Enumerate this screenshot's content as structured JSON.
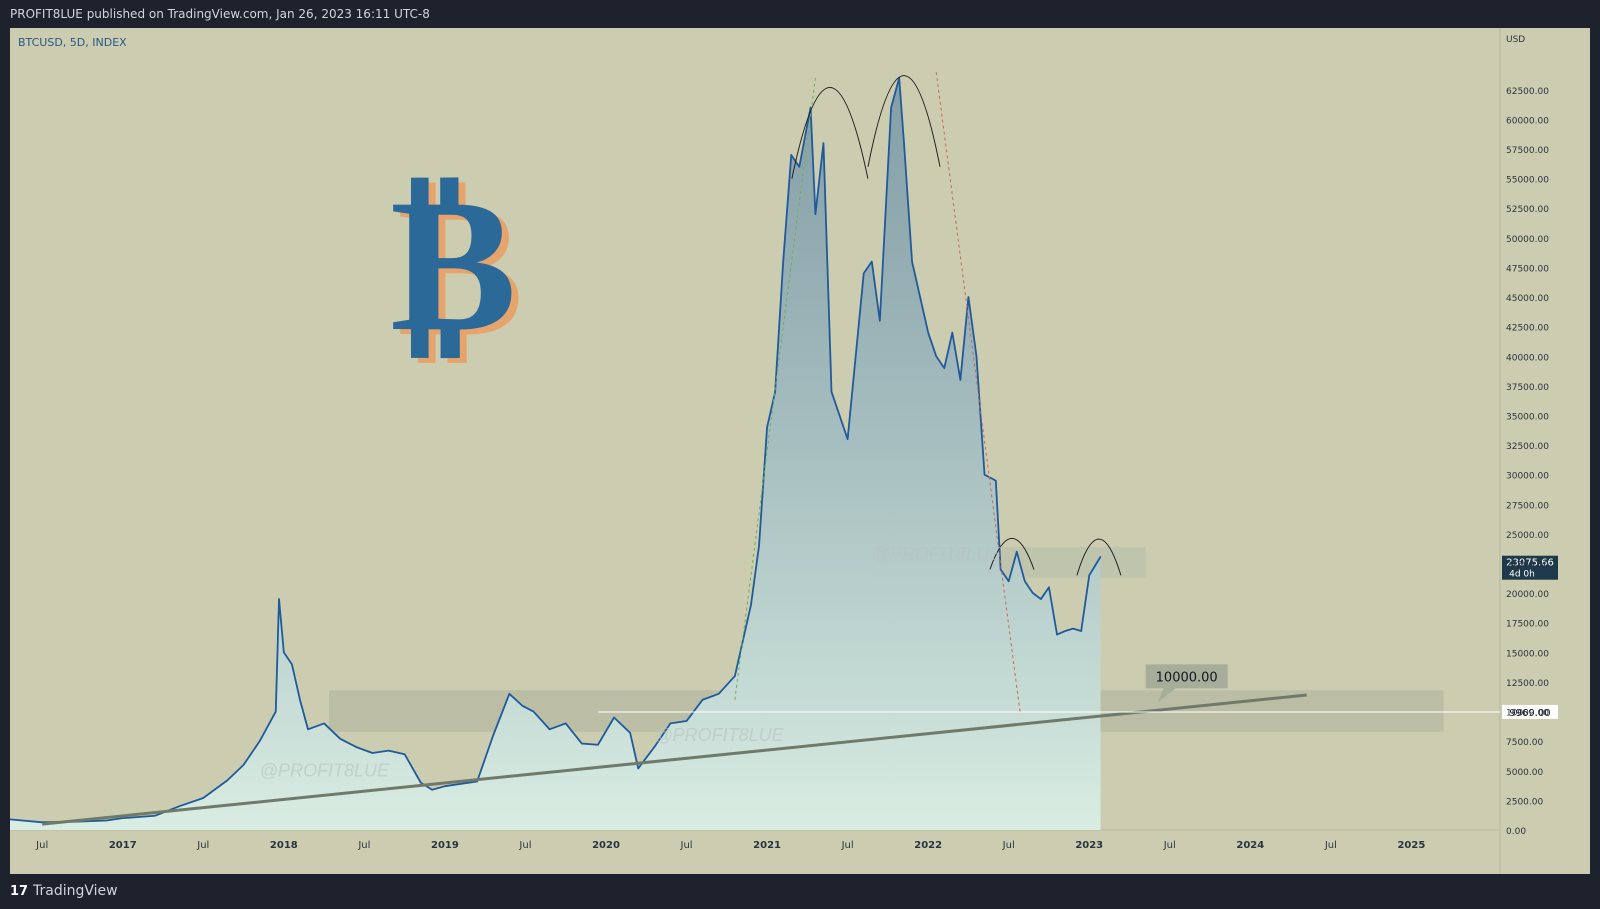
{
  "header": {
    "published_text": "PROFIT8LUE published on TradingView.com, Jan 26, 2023 16:11 UTC-8"
  },
  "symbol": {
    "label": "BTCUSD, 5D, INDEX"
  },
  "logo": {
    "glyph": "₿",
    "color": "#2b6a98",
    "shadow": "#e6a46c"
  },
  "watermarks": [
    "@PROFIT8LUE",
    "@PROFIT8LUE",
    "@PROFIT8LUE"
  ],
  "footer": {
    "logo_glyph": "17",
    "brand": "TradingView"
  },
  "colors": {
    "background": "#cccdb0",
    "line": "#1f5a9c",
    "trendline": "#707a6a",
    "accent": "#1e3a4a"
  },
  "chart_data": {
    "type": "line",
    "title": "",
    "xlabel": "",
    "ylabel": "USD",
    "ylim": [
      0,
      65000
    ],
    "x_tick_labels": [
      "Jul",
      "2017",
      "Jul",
      "2018",
      "Jul",
      "2019",
      "Jul",
      "2020",
      "Jul",
      "2021",
      "Jul",
      "2022",
      "Jul",
      "2023",
      "Jul",
      "2024",
      "Jul",
      "2025"
    ],
    "x_tick_bold": [
      false,
      true,
      false,
      true,
      false,
      true,
      false,
      true,
      false,
      true,
      false,
      true,
      false,
      true,
      false,
      true,
      false,
      true
    ],
    "y_tick_labels": [
      "62500.00",
      "60000.00",
      "57500.00",
      "55000.00",
      "52500.00",
      "50000.00",
      "47500.00",
      "45000.00",
      "42500.00",
      "40000.00",
      "37500.00",
      "35000.00",
      "32500.00",
      "30000.00",
      "27500.00",
      "25000.00",
      "22500.00",
      "20000.00",
      "17500.00",
      "15000.00",
      "12500.00",
      "10000.00",
      "7500.00",
      "5000.00",
      "2500.00",
      "0.00"
    ],
    "y_ticks": [
      62500,
      60000,
      57500,
      55000,
      52500,
      50000,
      47500,
      45000,
      42500,
      40000,
      37500,
      35000,
      32500,
      30000,
      27500,
      25000,
      22500,
      20000,
      17500,
      15000,
      12500,
      10000,
      7500,
      5000,
      2500,
      0
    ],
    "series": [
      {
        "x": [
          2016.3,
          2016.5,
          2016.7,
          2016.9,
          2017.0,
          2017.2,
          2017.35,
          2017.5,
          2017.65,
          2017.75,
          2017.85,
          2017.95,
          2017.97,
          2018.0,
          2018.05,
          2018.1,
          2018.15,
          2018.25,
          2018.35,
          2018.45,
          2018.55,
          2018.65,
          2018.75,
          2018.85,
          2018.92,
          2019.0,
          2019.1,
          2019.2,
          2019.3,
          2019.4,
          2019.48,
          2019.55,
          2019.65,
          2019.75,
          2019.85,
          2019.95,
          2020.05,
          2020.15,
          2020.2,
          2020.3,
          2020.4,
          2020.5,
          2020.6,
          2020.7,
          2020.8,
          2020.9,
          2020.95,
          2021.0,
          2021.05,
          2021.1,
          2021.15,
          2021.2,
          2021.27,
          2021.3,
          2021.35,
          2021.4,
          2021.45,
          2021.5,
          2021.55,
          2021.6,
          2021.65,
          2021.7,
          2021.77,
          2021.82,
          2021.85,
          2021.9,
          2021.95,
          2022.0,
          2022.05,
          2022.1,
          2022.15,
          2022.2,
          2022.25,
          2022.3,
          2022.35,
          2022.42,
          2022.45,
          2022.5,
          2022.55,
          2022.6,
          2022.65,
          2022.7,
          2022.75,
          2022.8,
          2022.85,
          2022.9,
          2022.95,
          2023.0,
          2023.07
        ],
        "values": [
          900,
          650,
          700,
          800,
          1000,
          1200,
          2000,
          2700,
          4200,
          5500,
          7500,
          10000,
          19500,
          15000,
          14000,
          11000,
          8500,
          9000,
          7700,
          7000,
          6500,
          6700,
          6400,
          4000,
          3400,
          3700,
          3900,
          4100,
          8000,
          11500,
          10500,
          10000,
          8500,
          9000,
          7300,
          7200,
          9500,
          8200,
          5200,
          7000,
          9000,
          9200,
          11000,
          11500,
          13000,
          19000,
          24000,
          34000,
          37000,
          48000,
          57000,
          56000,
          61000,
          52000,
          58000,
          37000,
          35000,
          33000,
          40000,
          47000,
          48000,
          43000,
          61000,
          63500,
          58000,
          48000,
          45000,
          42000,
          40000,
          39000,
          42000,
          38000,
          45000,
          40000,
          30000,
          29500,
          22000,
          21000,
          23500,
          21000,
          20000,
          19500,
          20500,
          16500,
          16800,
          17000,
          16800,
          21500,
          23075
        ]
      }
    ],
    "trendline_from": {
      "x": 2016.5,
      "y": 500
    },
    "trendline_to": {
      "x": 2024.35,
      "y": 11400
    },
    "support_level": 9969,
    "support_label": "9969.00",
    "price_label": "23075.66",
    "price_sub": "4d 0h",
    "callout_value": "10000.00",
    "annotations": [
      "double-top arcs",
      "head arcs near 2022-07 and 2023-01"
    ]
  }
}
